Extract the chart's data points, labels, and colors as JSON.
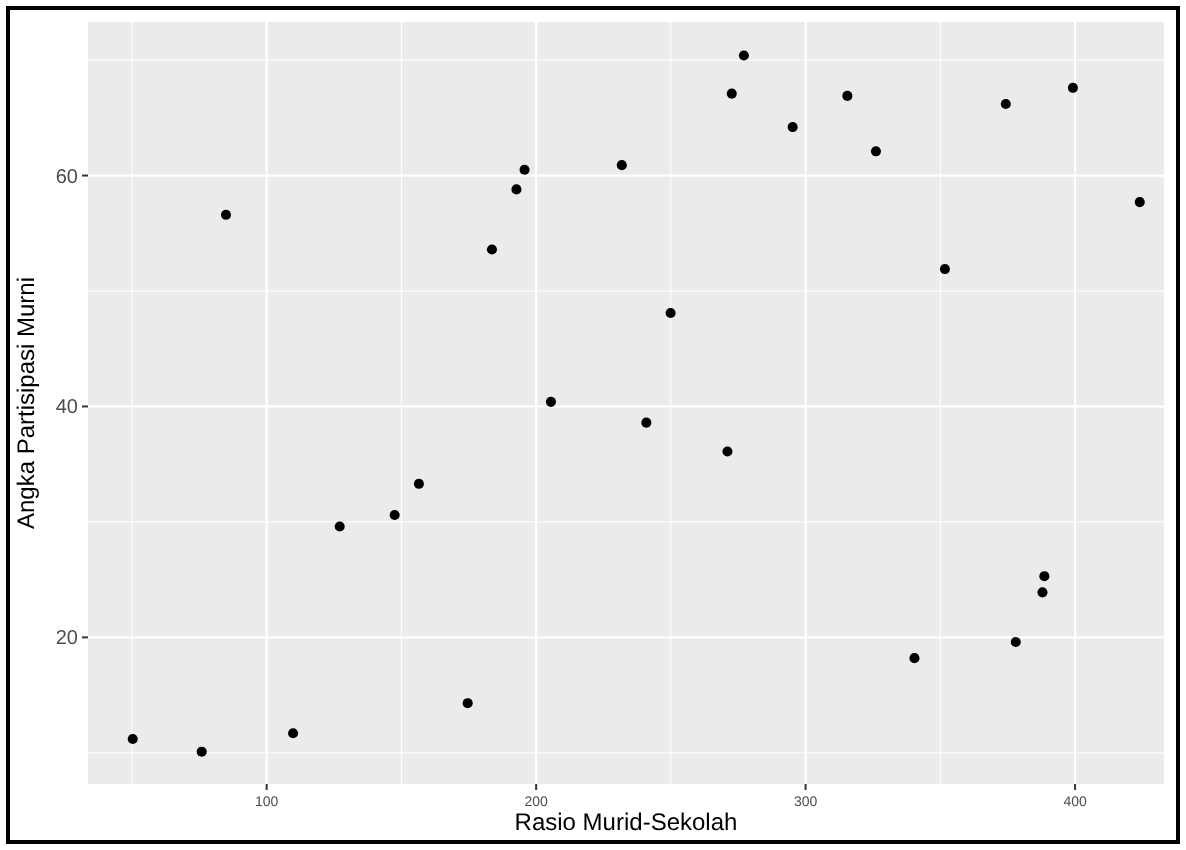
{
  "chart_data": {
    "type": "scatter",
    "xlabel": "Rasio Murid-Sekolah",
    "ylabel": "Angka Partisipasi Murni",
    "marker": "circle",
    "grid": true,
    "xlim": [
      33.7,
      433
    ],
    "xticks": [
      100,
      200,
      300,
      400
    ],
    "ylim": [
      7.3,
      73.3
    ],
    "yticks": [
      20,
      40,
      60
    ],
    "series": [
      {
        "color": "#000000",
        "x": [
          50.3,
          75.9,
          84.9,
          109.8,
          127.1,
          147.5,
          156.5,
          174.6,
          183.6,
          192.7,
          195.7,
          205.5,
          231.8,
          240.9,
          249.9,
          271,
          272.6,
          277.1,
          295.2,
          315.5,
          326.1,
          340.4,
          351.7,
          374.3,
          378,
          388.6,
          387.9,
          399.2,
          424
        ],
        "values": [
          11.2,
          10.1,
          56.6,
          11.7,
          29.6,
          30.6,
          33.3,
          14.3,
          53.6,
          58.8,
          60.5,
          40.4,
          60.9,
          38.6,
          48.1,
          36.1,
          67.1,
          70.4,
          64.2,
          66.9,
          62.1,
          18.2,
          51.9,
          66.2,
          19.6,
          25.3,
          23.9,
          67.6,
          57.7
        ]
      }
    ]
  }
}
